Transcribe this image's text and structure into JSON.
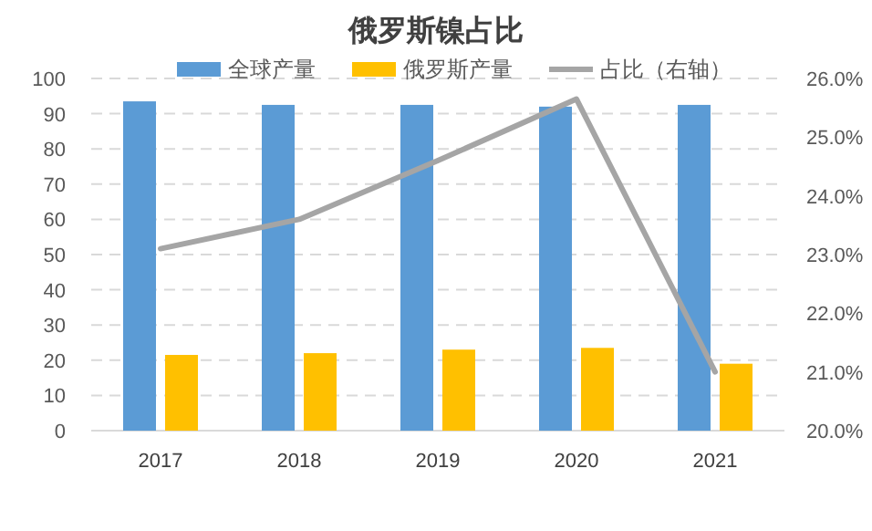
{
  "chart_data": {
    "type": "bar",
    "title": "俄罗斯镍占比",
    "categories": [
      "2017",
      "2018",
      "2019",
      "2020",
      "2021"
    ],
    "series": [
      {
        "name": "全球产量",
        "color": "#5b9bd5",
        "values": [
          93.5,
          92.5,
          92.5,
          92,
          92.5
        ]
      },
      {
        "name": "俄罗斯产量",
        "color": "#ffc000",
        "values": [
          21.5,
          22,
          23,
          23.5,
          19
        ]
      },
      {
        "name": "占比（右轴）",
        "color": "#a5a5a5",
        "type": "line",
        "axis": "y2",
        "marker": "none",
        "values": [
          23.1,
          23.6,
          24.6,
          25.65,
          21.0
        ]
      }
    ],
    "ylim": [
      0,
      100
    ],
    "yticks": [
      0,
      10,
      20,
      30,
      40,
      50,
      60,
      70,
      80,
      90,
      100
    ],
    "y2lim": [
      20,
      26
    ],
    "y2ticks": [
      {
        "value": 20,
        "label": "20.0%"
      },
      {
        "value": 21,
        "label": "21.0%"
      },
      {
        "value": 22,
        "label": "22.0%"
      },
      {
        "value": 23,
        "label": "23.0%"
      },
      {
        "value": 24,
        "label": "24.0%"
      },
      {
        "value": 25,
        "label": "25.0%"
      },
      {
        "value": 26,
        "label": "26.0%"
      }
    ],
    "grid": "y",
    "legend": "top"
  }
}
